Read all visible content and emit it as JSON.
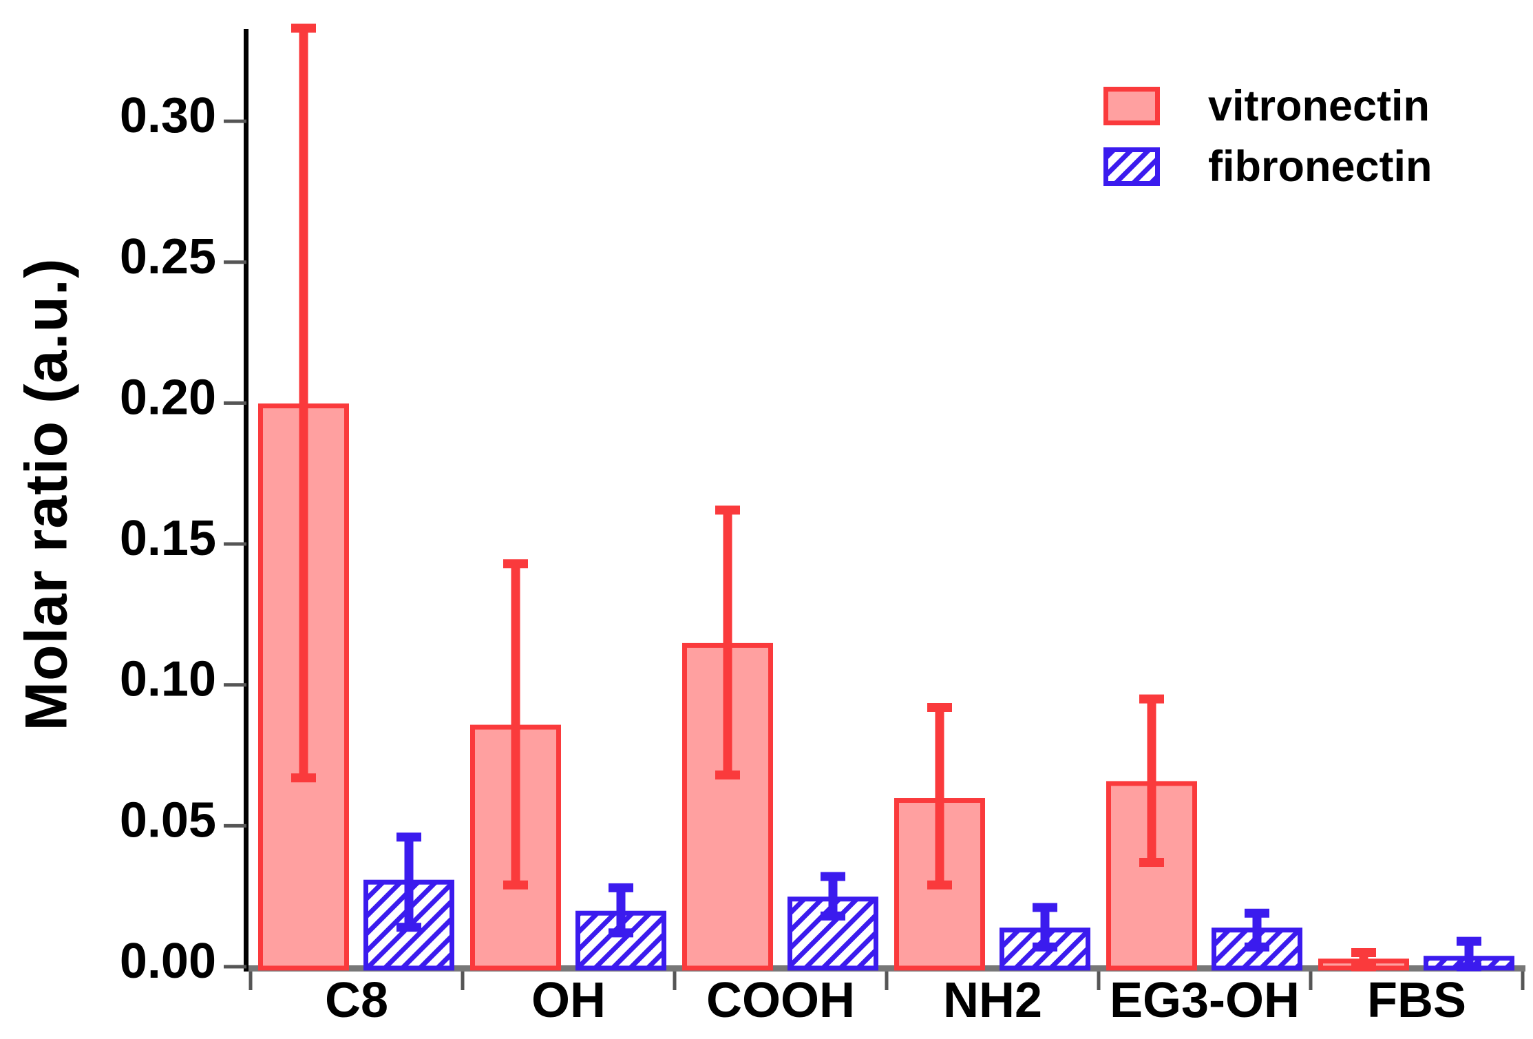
{
  "figure": {
    "background": "#FFFFFF",
    "axis_spine_color": "#000000",
    "x_axis_color": "#777777",
    "tick_color": "#555555",
    "text_color": "#000000"
  },
  "legend": {
    "items": [
      {
        "label": "vitronectin",
        "swatch": "solid-red-box"
      },
      {
        "label": "fibronectin",
        "swatch": "blue-hatched-box"
      }
    ]
  },
  "chart_data": {
    "type": "bar",
    "title": "",
    "xlabel": "",
    "ylabel": "Molar ratio (a.u.)",
    "ylim": [
      0,
      0.335
    ],
    "yticks": [
      0.0,
      0.05,
      0.1,
      0.15,
      0.2,
      0.25,
      0.3
    ],
    "ytick_labels": [
      "0.00",
      "0.05",
      "0.10",
      "0.15",
      "0.20",
      "0.25",
      "0.30"
    ],
    "categories": [
      "C8",
      "OH",
      "COOH",
      "NH2",
      "EG3-OH",
      "FBS"
    ],
    "grid": false,
    "legend_position": "upper right",
    "series": [
      {
        "name": "vitronectin",
        "style": "solid",
        "fill": "#FFA0A0",
        "edge": "#FA3A3C",
        "values": [
          0.199,
          0.085,
          0.114,
          0.059,
          0.065,
          0.002
        ],
        "err_low": [
          0.132,
          0.056,
          0.046,
          0.03,
          0.028,
          0.002
        ],
        "err_high": [
          0.134,
          0.058,
          0.048,
          0.033,
          0.03,
          0.003
        ]
      },
      {
        "name": "fibronectin",
        "style": "hatched",
        "hatch": "/",
        "fill": "#FFFFFF",
        "edge": "#3B1BEE",
        "values": [
          0.03,
          0.019,
          0.024,
          0.013,
          0.013,
          0.003
        ],
        "err_low": [
          0.016,
          0.007,
          0.006,
          0.006,
          0.006,
          0.003
        ],
        "err_high": [
          0.016,
          0.009,
          0.008,
          0.008,
          0.006,
          0.006
        ]
      }
    ]
  }
}
